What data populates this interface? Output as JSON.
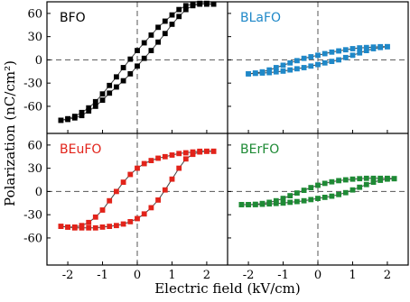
{
  "chart_data": {
    "type": "scatter",
    "layout": "2x2 shared axes",
    "xlabel": "Electric field (kV/cm)",
    "ylabel": "Polarization (nC/cm²)",
    "xlim": [
      -2.6,
      2.6
    ],
    "ylim": [
      -95,
      75
    ],
    "xticks": [
      -2,
      -1,
      0,
      1,
      2
    ],
    "xtick_labels": [
      "-2",
      "-1",
      "0",
      "1",
      "2"
    ],
    "yticks": [
      60,
      30,
      0,
      -30,
      -60
    ],
    "ytick_labels": [
      "60",
      "30",
      "0",
      "-30",
      "-60"
    ],
    "reference_lines": {
      "x": 0,
      "y": 0,
      "style": "dashed"
    },
    "panels": [
      {
        "label": "BFO",
        "color": "#000000",
        "series": [
          {
            "branch": "ascending",
            "x": [
              -2.2,
              -2.0,
              -1.8,
              -1.6,
              -1.4,
              -1.2,
              -1.0,
              -0.8,
              -0.6,
              -0.4,
              -0.2,
              0.0,
              0.2,
              0.4,
              0.6,
              0.8,
              1.0,
              1.2,
              1.4,
              1.6,
              1.8,
              2.0,
              2.2
            ],
            "y": [
              -78,
              -77,
              -75,
              -72,
              -66,
              -60,
              -52,
              -43,
              -35,
              -27,
              -18,
              -8,
              2,
              12,
              23,
              34,
              46,
              56,
              65,
              70,
              72,
              72,
              72
            ]
          },
          {
            "branch": "descending",
            "x": [
              2.2,
              2.0,
              1.8,
              1.6,
              1.4,
              1.2,
              1.0,
              0.8,
              0.6,
              0.4,
              0.2,
              0.0,
              -0.2,
              -0.4,
              -0.6,
              -0.8,
              -1.0,
              -1.2,
              -1.4,
              -1.6,
              -1.8,
              -2.0,
              -2.2
            ],
            "y": [
              72,
              73,
              73,
              72,
              70,
              65,
              58,
              50,
              42,
              32,
              22,
              12,
              1,
              -10,
              -22,
              -33,
              -44,
              -54,
              -62,
              -68,
              -73,
              -76,
              -78
            ]
          }
        ]
      },
      {
        "label": "BLaFO",
        "color": "#1f88c8",
        "series": [
          {
            "branch": "ascending",
            "x": [
              -2.0,
              -1.8,
              -1.6,
              -1.4,
              -1.2,
              -1.0,
              -0.8,
              -0.6,
              -0.4,
              -0.2,
              0.0,
              0.2,
              0.4,
              0.6,
              0.8,
              1.0,
              1.2,
              1.4,
              1.6,
              1.8,
              2.0
            ],
            "y": [
              -18,
              -17.5,
              -17,
              -16.5,
              -15.5,
              -14.5,
              -13,
              -11.5,
              -10,
              -8,
              -6,
              -4,
              -2,
              0,
              3,
              6,
              9,
              12,
              14.5,
              16,
              17
            ]
          },
          {
            "branch": "descending",
            "x": [
              2.0,
              1.8,
              1.6,
              1.4,
              1.2,
              1.0,
              0.8,
              0.6,
              0.4,
              0.2,
              0.0,
              -0.2,
              -0.4,
              -0.6,
              -0.8,
              -1.0,
              -1.2,
              -1.4,
              -1.6,
              -1.8,
              -2.0
            ],
            "y": [
              17,
              17,
              16.5,
              16,
              15.5,
              14.5,
              13,
              11.5,
              10,
              8,
              6,
              4,
              2,
              -1,
              -4,
              -7,
              -10,
              -13,
              -15.5,
              -17,
              -18
            ]
          }
        ]
      },
      {
        "label": "BEuFO",
        "color": "#e2231a",
        "series": [
          {
            "branch": "ascending",
            "x": [
              -2.2,
              -2.0,
              -1.8,
              -1.6,
              -1.4,
              -1.2,
              -1.0,
              -0.8,
              -0.6,
              -0.4,
              -0.2,
              0.0,
              0.2,
              0.4,
              0.6,
              0.8,
              1.0,
              1.2,
              1.4,
              1.6,
              1.8,
              2.0,
              2.2
            ],
            "y": [
              -45,
              -46,
              -47,
              -47,
              -47,
              -47,
              -46,
              -45,
              -44,
              -42,
              -39,
              -35,
              -29,
              -21,
              -11,
              2,
              16,
              30,
              42,
              48,
              51,
              52,
              52
            ]
          },
          {
            "branch": "descending",
            "x": [
              2.2,
              2.0,
              1.8,
              1.6,
              1.4,
              1.2,
              1.0,
              0.8,
              0.6,
              0.4,
              0.2,
              0.0,
              -0.2,
              -0.4,
              -0.6,
              -0.8,
              -1.0,
              -1.2,
              -1.4,
              -1.6,
              -1.8,
              -2.0,
              -2.2
            ],
            "y": [
              52,
              52,
              52,
              51,
              50,
              49,
              47,
              45,
              43,
              40,
              36,
              30,
              22,
              12,
              0,
              -12,
              -24,
              -33,
              -40,
              -44,
              -46,
              -46,
              -45
            ]
          }
        ]
      },
      {
        "label": "BErFO",
        "color": "#1e8a35",
        "series": [
          {
            "branch": "ascending",
            "x": [
              -2.2,
              -2.0,
              -1.8,
              -1.6,
              -1.4,
              -1.2,
              -1.0,
              -0.8,
              -0.6,
              -0.4,
              -0.2,
              0.0,
              0.2,
              0.4,
              0.6,
              0.8,
              1.0,
              1.2,
              1.4,
              1.6,
              1.8,
              2.0,
              2.2
            ],
            "y": [
              -17,
              -17,
              -17,
              -16.5,
              -16,
              -15.5,
              -15,
              -14,
              -13,
              -12,
              -10.5,
              -9,
              -7.5,
              -6,
              -4,
              -1.5,
              2,
              5.5,
              9,
              12,
              14.5,
              16,
              16.5
            ]
          },
          {
            "branch": "descending",
            "x": [
              2.2,
              2.0,
              1.8,
              1.6,
              1.4,
              1.2,
              1.0,
              0.8,
              0.6,
              0.4,
              0.2,
              0.0,
              -0.2,
              -0.4,
              -0.6,
              -0.8,
              -1.0,
              -1.2,
              -1.4,
              -1.6,
              -1.8,
              -2.0,
              -2.2
            ],
            "y": [
              16.5,
              17,
              17,
              17,
              17,
              16.5,
              16,
              15,
              14,
              12.5,
              10.5,
              8,
              5,
              1.5,
              -2,
              -5.5,
              -9,
              -12,
              -14,
              -15.5,
              -16.5,
              -17,
              -17
            ]
          }
        ]
      }
    ]
  }
}
